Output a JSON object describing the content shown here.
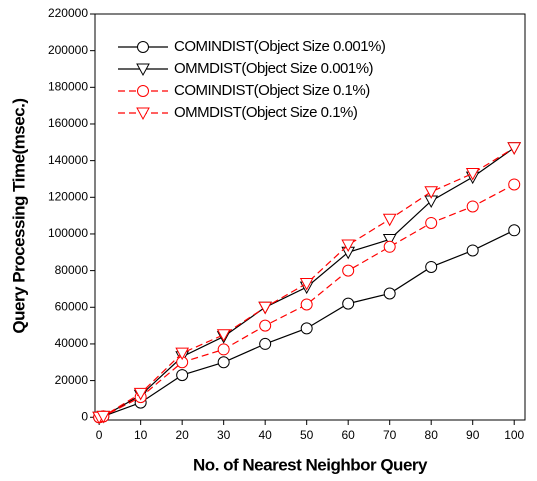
{
  "chart_data": {
    "type": "line",
    "x_label": "No. of Nearest Neighbor Query",
    "y_label": "Query Processing Time(msec.)",
    "x": [
      0,
      1,
      10,
      20,
      30,
      40,
      50,
      60,
      70,
      80,
      90,
      100
    ],
    "series": [
      {
        "name": "COMINDIST(Object Size 0.001%)",
        "color": "#000000",
        "marker": "circle",
        "dash": false,
        "values": [
          0,
          500,
          8000,
          23000,
          30000,
          40000,
          48500,
          62000,
          67500,
          82000,
          91000,
          102000
        ]
      },
      {
        "name": "OMMDIST(Object Size 0.001%)",
        "color": "#000000",
        "marker": "triangle",
        "dash": false,
        "values": [
          0,
          500,
          12000,
          33000,
          44000,
          60000,
          71000,
          90000,
          97000,
          118000,
          131000,
          147000
        ]
      },
      {
        "name": "COMINDIST(Object Size 0.1%)",
        "color": "#ff0000",
        "marker": "circle",
        "dash": true,
        "values": [
          0,
          500,
          11000,
          30000,
          37000,
          50000,
          61500,
          80000,
          93000,
          106000,
          115000,
          127000
        ]
      },
      {
        "name": "OMMDIST(Object Size 0.1%)",
        "color": "#ff0000",
        "marker": "triangle",
        "dash": true,
        "values": [
          0,
          500,
          13000,
          35000,
          45000,
          60000,
          73000,
          94000,
          108000,
          123000,
          133000,
          147000
        ]
      }
    ],
    "xlim": [
      -1,
      102.6
    ],
    "ylim": [
      -1500,
      220000
    ],
    "xticks": [
      0,
      10,
      20,
      30,
      40,
      50,
      60,
      70,
      80,
      90,
      100
    ],
    "yticks": [
      0,
      20000,
      40000,
      60000,
      80000,
      100000,
      120000,
      140000,
      160000,
      180000,
      200000,
      220000
    ],
    "legend": "upper left"
  }
}
